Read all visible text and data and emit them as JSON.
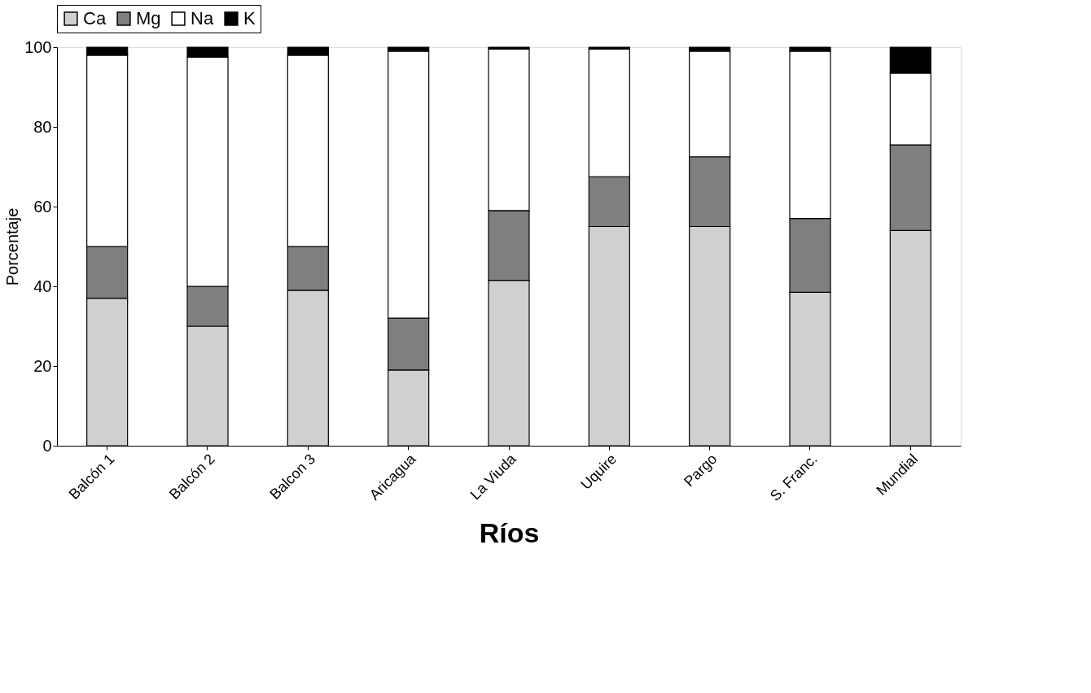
{
  "chart_data": {
    "type": "bar",
    "stacked": true,
    "xlabel": "Ríos",
    "ylabel": "Porcentaje",
    "categories": [
      "Balcón 1",
      "Balcón 2",
      "Balcon 3",
      "Aricagua",
      "La Viuda",
      "Uquire",
      "Pargo",
      "S. Franc.",
      "Mundial"
    ],
    "series": [
      {
        "name": "Ca",
        "color": "#d0d0d0",
        "values": [
          37,
          30,
          39,
          19,
          41.5,
          55,
          55,
          38.5,
          54
        ]
      },
      {
        "name": "Mg",
        "color": "#7f7f7f",
        "values": [
          13,
          10,
          11,
          13,
          17.5,
          12.5,
          17.5,
          18.5,
          21.5
        ]
      },
      {
        "name": "Na",
        "color": "#ffffff",
        "values": [
          48,
          57.5,
          48,
          67,
          40.5,
          32,
          26.5,
          42,
          18
        ]
      },
      {
        "name": "K",
        "color": "#000000",
        "values": [
          2,
          2.5,
          2,
          1,
          0.5,
          0.5,
          1,
          1,
          6.5
        ]
      }
    ],
    "ylim": [
      0,
      100
    ],
    "yticks": [
      0,
      20,
      40,
      60,
      80,
      100
    ],
    "grid": false,
    "legend": "top"
  }
}
